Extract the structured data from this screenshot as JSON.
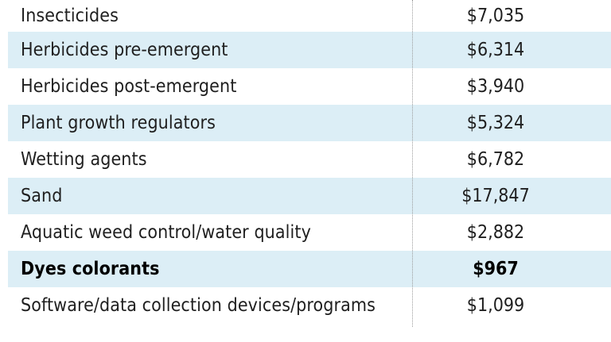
{
  "table": {
    "rows": [
      {
        "label": "Insecticides",
        "value": "$7,035",
        "shaded": false,
        "bold": false
      },
      {
        "label": "Herbicides pre-emergent",
        "value": "$6,314",
        "shaded": true,
        "bold": false
      },
      {
        "label": "Herbicides post-emergent",
        "value": "$3,940",
        "shaded": false,
        "bold": false
      },
      {
        "label": "Plant growth regulators",
        "value": "$5,324",
        "shaded": true,
        "bold": false
      },
      {
        "label": "Wetting agents",
        "value": "$6,782",
        "shaded": false,
        "bold": false
      },
      {
        "label": "Sand",
        "value": "$17,847",
        "shaded": true,
        "bold": false
      },
      {
        "label": "Aquatic weed control/water quality",
        "value": "$2,882",
        "shaded": false,
        "bold": false
      },
      {
        "label": "Dyes colorants",
        "value": "$967",
        "shaded": true,
        "bold": true
      },
      {
        "label": "Software/data collection devices/programs",
        "value": "$1,099",
        "shaded": false,
        "bold": false
      }
    ]
  },
  "colors": {
    "row_shade": "#dceef6",
    "text": "#1f1f1f"
  }
}
